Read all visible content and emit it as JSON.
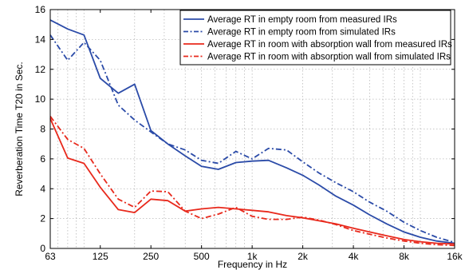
{
  "chart_data": {
    "type": "line",
    "title": "",
    "xlabel": "Frequency in Hz",
    "ylabel": "Reverberation Time T20 in Sec.",
    "x_scale": "log",
    "xlim": [
      63,
      16000
    ],
    "ylim": [
      0,
      16
    ],
    "grid": true,
    "legend_position": "top-right",
    "x_ticks": [
      {
        "value": 63,
        "label": "63"
      },
      {
        "value": 125,
        "label": "125"
      },
      {
        "value": 250,
        "label": "250"
      },
      {
        "value": 500,
        "label": "500"
      },
      {
        "value": 1000,
        "label": "1k"
      },
      {
        "value": 2000,
        "label": "2k"
      },
      {
        "value": 4000,
        "label": "4k"
      },
      {
        "value": 8000,
        "label": "8k"
      },
      {
        "value": 16000,
        "label": "16k"
      }
    ],
    "y_ticks": [
      0,
      2,
      4,
      6,
      8,
      10,
      12,
      14,
      16
    ],
    "x": [
      63,
      80,
      100,
      125,
      160,
      200,
      250,
      315,
      400,
      500,
      630,
      800,
      1000,
      1250,
      1600,
      2000,
      2500,
      3150,
      4000,
      5000,
      6300,
      8000,
      10000,
      12500,
      16000
    ],
    "series": [
      {
        "name": "Average RT in empty room from measured IRs",
        "color": "#2b4ba8",
        "dash": "solid",
        "values": [
          15.3,
          14.7,
          14.3,
          11.4,
          10.4,
          11.0,
          7.9,
          7.0,
          6.2,
          5.5,
          5.3,
          5.75,
          5.85,
          5.9,
          5.4,
          4.9,
          4.25,
          3.5,
          2.9,
          2.25,
          1.65,
          1.1,
          0.75,
          0.5,
          0.35
        ]
      },
      {
        "name": "Average RT in empty room from simulated IRs",
        "color": "#2b4ba8",
        "dash": "dashdot",
        "values": [
          14.3,
          12.6,
          13.8,
          12.6,
          9.6,
          8.6,
          7.8,
          7.0,
          6.6,
          5.9,
          5.7,
          6.5,
          6.0,
          6.7,
          6.6,
          5.8,
          5.05,
          4.4,
          3.8,
          3.1,
          2.5,
          1.75,
          1.2,
          0.75,
          0.4
        ]
      },
      {
        "name": "Average RT in room with absorption wall from measured IRs",
        "color": "#e8291c",
        "dash": "solid",
        "values": [
          8.7,
          6.05,
          5.7,
          4.1,
          2.6,
          2.4,
          3.3,
          3.2,
          2.5,
          2.65,
          2.75,
          2.65,
          2.55,
          2.45,
          2.2,
          2.05,
          1.85,
          1.65,
          1.35,
          1.1,
          0.85,
          0.6,
          0.45,
          0.35,
          0.3
        ]
      },
      {
        "name": "Average RT in room with absorption wall from simulated IRs",
        "color": "#e8291c",
        "dash": "dashdot",
        "values": [
          8.85,
          7.3,
          6.7,
          5.0,
          3.3,
          2.75,
          3.85,
          3.8,
          2.5,
          2.0,
          2.3,
          2.75,
          2.15,
          1.95,
          1.95,
          2.1,
          1.9,
          1.6,
          1.2,
          0.95,
          0.7,
          0.5,
          0.35,
          0.25,
          0.2
        ]
      }
    ]
  }
}
